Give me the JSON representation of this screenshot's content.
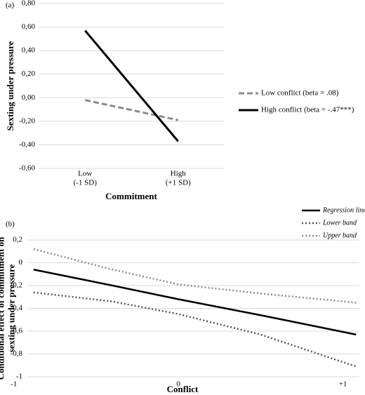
{
  "chart_data": [
    {
      "type": "line",
      "panel_label": "(a)",
      "y_label": "Sexting under pressure",
      "x_label": "Commitment",
      "categories": [
        "Low\n(-1 SD)",
        "High\n(+1 SD)"
      ],
      "series": [
        {
          "name": "Low conflict (beta = .08)",
          "color": "#8c8c8c",
          "dash": "dashed",
          "values": [
            -0.02,
            -0.19
          ]
        },
        {
          "name": "High conflict (beta = -.47***)",
          "color": "#000000",
          "dash": "solid",
          "values": [
            0.57,
            -0.37
          ]
        }
      ],
      "ylim": [
        -0.6,
        0.8
      ],
      "yticks": [
        {
          "value": 0.8,
          "label": "0,80"
        },
        {
          "value": 0.6,
          "label": "0,60"
        },
        {
          "value": 0.4,
          "label": "0,40"
        },
        {
          "value": 0.2,
          "label": "0,20"
        },
        {
          "value": 0,
          "label": "0,00"
        },
        {
          "value": -0.2,
          "label": "-0,20"
        },
        {
          "value": -0.4,
          "label": "-0,40"
        },
        {
          "value": -0.6,
          "label": "-0,60"
        }
      ],
      "grid": true,
      "legend": "right"
    },
    {
      "type": "line",
      "panel_label": "(b)",
      "y_label": "Conditional effect of commitment on\nsexting under pressure",
      "x_label": "Conflict",
      "x": [
        -0.88,
        -0.4,
        0,
        0.5,
        1.08
      ],
      "series": [
        {
          "name": "Regression line",
          "color": "#000000",
          "dash": "solid",
          "values": [
            -0.06,
            -0.2,
            -0.32,
            -0.46,
            -0.63
          ]
        },
        {
          "name": "Lower band",
          "color": "#555555",
          "dash": "dotted",
          "values": [
            -0.26,
            -0.34,
            -0.45,
            -0.63,
            -0.91
          ]
        },
        {
          "name": "Upper band",
          "color": "#8c8c8c",
          "dash": "dotted",
          "values": [
            0.12,
            -0.06,
            -0.19,
            -0.27,
            -0.35
          ]
        }
      ],
      "xlim": [
        -1.05,
        1.1
      ],
      "xticks": [
        -1,
        0,
        {
          "value": 1,
          "label": "+1"
        }
      ],
      "ylim": [
        -1,
        0.2
      ],
      "yticks": [
        {
          "value": 0.2,
          "label": "0,2"
        },
        0,
        {
          "value": -0.2,
          "label": "-0,2"
        },
        {
          "value": -0.4,
          "label": "-0,4"
        },
        {
          "value": -0.6,
          "label": "-0,6"
        },
        {
          "value": -0.8,
          "label": "-0,8"
        },
        -1
      ],
      "grid": true,
      "legend": "top-right"
    }
  ]
}
